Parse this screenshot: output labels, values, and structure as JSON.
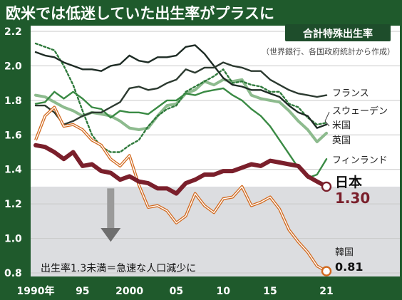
{
  "chart_data": {
    "type": "line",
    "title": "欧米では低迷していた出生率がプラスに",
    "subtitle": "合計特殊出生率",
    "source": "（世界銀行、各国政府統計から作成）",
    "annotation": "出生率1.3未満＝急速な人口減少に",
    "ylim": [
      0.8,
      2.2
    ],
    "xlim": [
      1990,
      2021
    ],
    "y_ticks": [
      {
        "v": 0.8,
        "t": "0.8"
      },
      {
        "v": 1.0,
        "t": "1.0"
      },
      {
        "v": 1.2,
        "t": "1.2"
      },
      {
        "v": 1.4,
        "t": "1.4"
      },
      {
        "v": 1.6,
        "t": "1.6"
      },
      {
        "v": 1.8,
        "t": "1.8"
      },
      {
        "v": 2.0,
        "t": "2.0"
      },
      {
        "v": 2.2,
        "t": "2.2"
      }
    ],
    "x_ticks": [
      {
        "v": 1990,
        "t": "1990年"
      },
      {
        "v": 1995,
        "t": "95"
      },
      {
        "v": 2000,
        "t": "2000"
      },
      {
        "v": 2005,
        "t": "05"
      },
      {
        "v": 2010,
        "t": "10"
      },
      {
        "v": 2015,
        "t": "15"
      },
      {
        "v": 2021,
        "t": "21"
      }
    ],
    "threshold": 1.3,
    "series": [
      {
        "name": "フランス",
        "color": "#2c3a30",
        "style": "solid",
        "x": [
          1990,
          1991,
          1992,
          1993,
          1994,
          1995,
          1996,
          1997,
          1998,
          1999,
          2000,
          2001,
          2002,
          2003,
          2004,
          2005,
          2006,
          2007,
          2008,
          2009,
          2010,
          2011,
          2012,
          2013,
          2014,
          2015,
          2016,
          2017,
          2018,
          2019,
          2020,
          2021
        ],
        "y": [
          1.77,
          1.77,
          1.73,
          1.66,
          1.68,
          1.71,
          1.73,
          1.73,
          1.76,
          1.79,
          1.87,
          1.88,
          1.86,
          1.87,
          1.9,
          1.92,
          1.98,
          1.96,
          1.99,
          1.99,
          2.02,
          2.0,
          1.99,
          1.97,
          1.97,
          1.92,
          1.89,
          1.86,
          1.84,
          1.83,
          1.82,
          1.83
        ]
      },
      {
        "name": "スウェーデン",
        "color": "#2f7a3c",
        "style": "solid",
        "x": [
          1990,
          1991,
          1992,
          1993,
          1994,
          1995,
          1996,
          1997,
          1998,
          1999,
          2000,
          2001,
          2002,
          2003,
          2004,
          2005,
          2006,
          2007,
          2008,
          2009,
          2010,
          2011,
          2012,
          2013,
          2014,
          2015,
          2016,
          2017,
          2018,
          2019,
          2020,
          2021
        ],
        "y": [
          2.13,
          2.11,
          2.09,
          2.0,
          1.89,
          1.74,
          1.6,
          1.53,
          1.5,
          1.5,
          1.54,
          1.57,
          1.65,
          1.71,
          1.75,
          1.77,
          1.85,
          1.88,
          1.91,
          1.94,
          1.98,
          1.9,
          1.91,
          1.89,
          1.88,
          1.85,
          1.85,
          1.78,
          1.76,
          1.7,
          1.66,
          1.67
        ]
      },
      {
        "name": "米国",
        "color": "#1e2c25",
        "style": "solid",
        "x": [
          1990,
          1991,
          1992,
          1993,
          1994,
          1995,
          1996,
          1997,
          1998,
          1999,
          2000,
          2001,
          2002,
          2003,
          2004,
          2005,
          2006,
          2007,
          2008,
          2009,
          2010,
          2011,
          2012,
          2013,
          2014,
          2015,
          2016,
          2017,
          2018,
          2019,
          2020,
          2021
        ],
        "y": [
          2.08,
          2.06,
          2.05,
          2.02,
          2.0,
          1.98,
          1.98,
          1.97,
          2.0,
          2.01,
          2.06,
          2.03,
          2.02,
          2.05,
          2.05,
          2.06,
          2.11,
          2.12,
          2.07,
          2.0,
          1.93,
          1.89,
          1.88,
          1.86,
          1.86,
          1.84,
          1.82,
          1.77,
          1.73,
          1.71,
          1.64,
          1.66
        ]
      },
      {
        "name": "英国",
        "color": "#8dbb8e",
        "style": "solid",
        "x": [
          1990,
          1991,
          1992,
          1993,
          1994,
          1995,
          1996,
          1997,
          1998,
          1999,
          2000,
          2001,
          2002,
          2003,
          2004,
          2005,
          2006,
          2007,
          2008,
          2009,
          2010,
          2011,
          2012,
          2013,
          2014,
          2015,
          2016,
          2017,
          2018,
          2019,
          2020,
          2021
        ],
        "y": [
          1.83,
          1.82,
          1.79,
          1.76,
          1.74,
          1.71,
          1.73,
          1.72,
          1.71,
          1.68,
          1.64,
          1.63,
          1.64,
          1.71,
          1.77,
          1.78,
          1.84,
          1.86,
          1.91,
          1.89,
          1.92,
          1.91,
          1.92,
          1.83,
          1.81,
          1.8,
          1.79,
          1.74,
          1.68,
          1.63,
          1.56,
          1.61
        ]
      },
      {
        "name": "フィンランド",
        "color": "#3a8a44",
        "style": "solid",
        "x": [
          1990,
          1991,
          1992,
          1993,
          1994,
          1995,
          1996,
          1997,
          1998,
          1999,
          2000,
          2001,
          2002,
          2003,
          2004,
          2005,
          2006,
          2007,
          2008,
          2009,
          2010,
          2011,
          2012,
          2013,
          2014,
          2015,
          2016,
          2017,
          2018,
          2019,
          2020,
          2021
        ],
        "y": [
          1.78,
          1.79,
          1.85,
          1.81,
          1.85,
          1.81,
          1.76,
          1.75,
          1.7,
          1.74,
          1.73,
          1.73,
          1.72,
          1.76,
          1.8,
          1.8,
          1.84,
          1.83,
          1.85,
          1.86,
          1.87,
          1.83,
          1.8,
          1.75,
          1.71,
          1.65,
          1.57,
          1.49,
          1.41,
          1.35,
          1.37,
          1.46
        ]
      },
      {
        "name": "日本",
        "color": "#7a1f2b",
        "style": "solid",
        "x": [
          1990,
          1991,
          1992,
          1993,
          1994,
          1995,
          1996,
          1997,
          1998,
          1999,
          2000,
          2001,
          2002,
          2003,
          2004,
          2005,
          2006,
          2007,
          2008,
          2009,
          2010,
          2011,
          2012,
          2013,
          2014,
          2015,
          2016,
          2017,
          2018,
          2019,
          2020,
          2021
        ],
        "y": [
          1.54,
          1.53,
          1.5,
          1.46,
          1.5,
          1.42,
          1.43,
          1.39,
          1.38,
          1.34,
          1.36,
          1.33,
          1.32,
          1.29,
          1.29,
          1.26,
          1.32,
          1.34,
          1.37,
          1.37,
          1.39,
          1.39,
          1.41,
          1.43,
          1.42,
          1.45,
          1.44,
          1.43,
          1.42,
          1.36,
          1.33,
          1.3
        ],
        "end_label": "1.30"
      },
      {
        "name": "韓国",
        "color": "#d2691e",
        "style": "double",
        "x": [
          1990,
          1991,
          1992,
          1993,
          1994,
          1995,
          1996,
          1997,
          1998,
          1999,
          2000,
          2001,
          2002,
          2003,
          2004,
          2005,
          2006,
          2007,
          2008,
          2009,
          2010,
          2011,
          2012,
          2013,
          2014,
          2015,
          2016,
          2017,
          2018,
          2019,
          2020,
          2021
        ],
        "y": [
          1.57,
          1.71,
          1.76,
          1.65,
          1.66,
          1.63,
          1.57,
          1.54,
          1.46,
          1.42,
          1.48,
          1.31,
          1.18,
          1.19,
          1.16,
          1.09,
          1.13,
          1.26,
          1.19,
          1.15,
          1.23,
          1.24,
          1.3,
          1.19,
          1.21,
          1.24,
          1.17,
          1.05,
          0.98,
          0.92,
          0.84,
          0.81
        ],
        "end_label": "0.81"
      }
    ],
    "highlight_series": "米国",
    "highlight_style": "dotted"
  },
  "colors": {
    "header_bg": "#1f5a2c",
    "plot_bg": "#ffffff",
    "gray_zone": "#dcdde0",
    "dark_panel": "#1e4d2b"
  }
}
